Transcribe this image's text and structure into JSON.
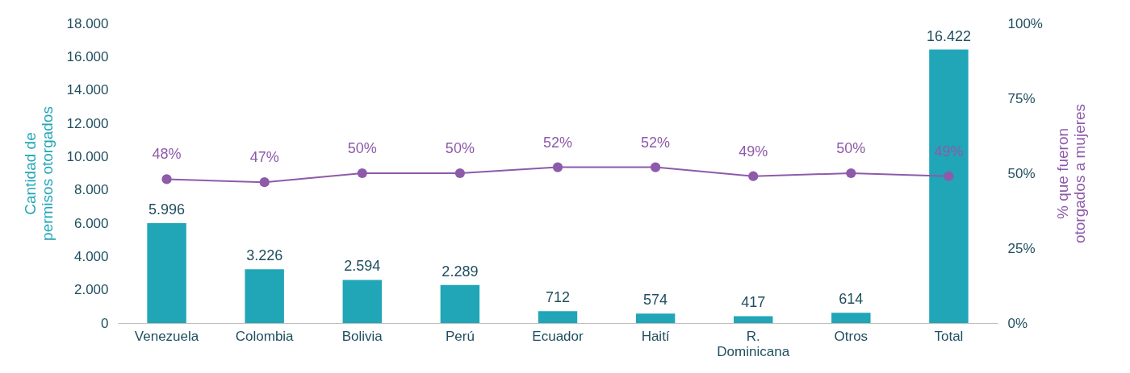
{
  "chart_data": {
    "type": "bar",
    "ylabel": "Cantidad de permisos otorgados",
    "y2label": "% que fueron otorgados a mujeres",
    "categories": [
      "Venezuela",
      "Colombia",
      "Bolivia",
      "Perú",
      "Ecuador",
      "Haití",
      "R. Dominicana",
      "Otros",
      "Total"
    ],
    "series": [
      {
        "color": "#20a6b7",
        "values": [
          5996,
          3226,
          2594,
          2289,
          712,
          574,
          417,
          614,
          16422
        ],
        "value_labels": [
          "5.996",
          "3.226",
          "2.594",
          "2.289",
          "712",
          "574",
          "417",
          "614",
          "16.422"
        ]
      },
      {
        "type": "line",
        "axis": "y2",
        "color": "#8e5aaa",
        "marker": "circle",
        "values": [
          48,
          47,
          50,
          50,
          52,
          52,
          49,
          50,
          49
        ],
        "value_labels": [
          "48%",
          "47%",
          "50%",
          "50%",
          "52%",
          "52%",
          "49%",
          "50%",
          "49%"
        ]
      }
    ],
    "ylim": [
      0,
      18000
    ],
    "yticks": [
      {
        "value": 0,
        "label": "0"
      },
      {
        "value": 2000,
        "label": "2.000"
      },
      {
        "value": 4000,
        "label": "4.000"
      },
      {
        "value": 6000,
        "label": "6.000"
      },
      {
        "value": 8000,
        "label": "8.000"
      },
      {
        "value": 10000,
        "label": "10.000"
      },
      {
        "value": 12000,
        "label": "12.000"
      },
      {
        "value": 14000,
        "label": "14.000"
      },
      {
        "value": 16000,
        "label": "16.000"
      },
      {
        "value": 18000,
        "label": "18.000"
      }
    ],
    "y2lim": [
      0,
      100
    ],
    "y2ticks": [
      {
        "value": 0,
        "label": "0%"
      },
      {
        "value": 25,
        "label": "25%"
      },
      {
        "value": 50,
        "label": "50%"
      },
      {
        "value": 75,
        "label": "75%"
      },
      {
        "value": 100,
        "label": "100%"
      }
    ],
    "grid": false
  }
}
